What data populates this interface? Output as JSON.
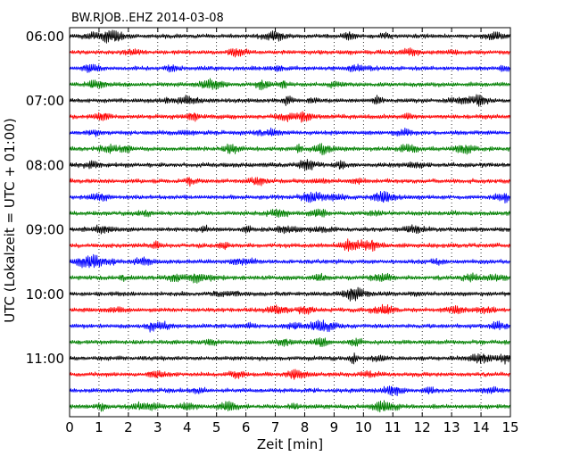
{
  "chart_data": {
    "type": "line",
    "title": "BW.RJOB..EHZ 2014-03-08",
    "xlabel": "Zeit  [min]",
    "ylabel": "UTC (Lokalzeit = UTC + 01:00)",
    "xlim": [
      0,
      15
    ],
    "x_ticks": [
      0,
      1,
      2,
      3,
      4,
      5,
      6,
      7,
      8,
      9,
      10,
      11,
      12,
      13,
      14,
      15
    ],
    "x_tick_labels": [
      "0",
      "1",
      "2",
      "3",
      "4",
      "5",
      "6",
      "7",
      "8",
      "9",
      "10",
      "11",
      "12",
      "13",
      "14",
      "15"
    ],
    "y_tick_labels": [
      "06:00",
      "07:00",
      "08:00",
      "09:00",
      "10:00",
      "11:00"
    ],
    "grid": "vertical dotted at each minute",
    "traces_per_hour": 4,
    "trace_minutes": 15,
    "trace_count": 24,
    "colors": [
      "#000000",
      "#ff0000",
      "#0000ff",
      "#008000"
    ]
  }
}
